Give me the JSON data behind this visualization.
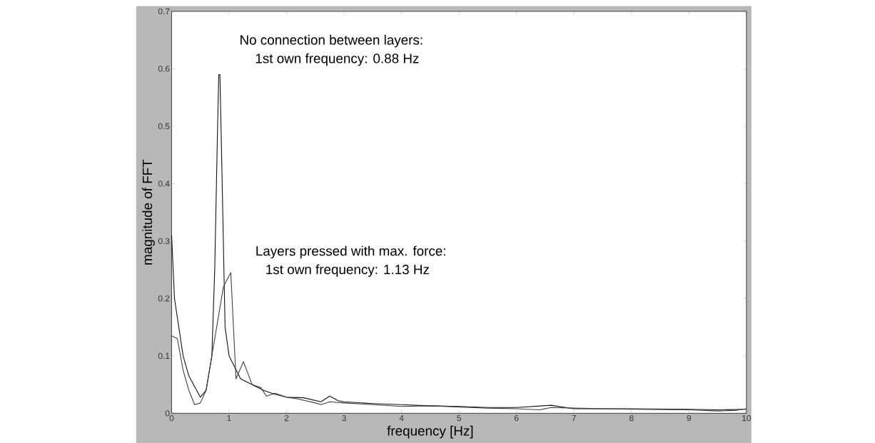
{
  "chart_data": {
    "type": "line",
    "xlabel": "frequency  [Hz]",
    "ylabel": "magnitude of FFT",
    "annotations": [
      "No connection between layers:",
      "1st own frequency: 0.88 Hz",
      "Layers pressed with max. force:",
      "1st own frequency: 1.13 Hz"
    ],
    "series": [
      {
        "color": "#111111",
        "x": [
          0,
          0.05,
          0.2,
          0.3,
          0.5,
          0.6,
          0.7,
          0.75,
          0.8,
          0.82,
          0.84,
          0.87,
          0.9,
          0.93,
          1.0,
          1.05,
          1.2,
          1.4,
          1.6,
          1.8,
          2.0,
          2.3,
          2.6,
          2.75,
          2.9,
          3.0,
          3.5,
          4.0,
          4.5,
          5.0,
          5.5,
          6.0,
          6.6,
          7.0,
          8.0,
          9.0,
          9.5,
          10
        ],
        "values": [
          0.31,
          0.2,
          0.1,
          0.065,
          0.028,
          0.04,
          0.1,
          0.25,
          0.5,
          0.59,
          0.59,
          0.45,
          0.3,
          0.15,
          0.1,
          0.09,
          0.06,
          0.05,
          0.04,
          0.033,
          0.028,
          0.027,
          0.02,
          0.03,
          0.022,
          0.02,
          0.017,
          0.015,
          0.013,
          0.012,
          0.01,
          0.01,
          0.014,
          0.008,
          0.008,
          0.007,
          0.006,
          0.007
        ]
      },
      {
        "color": "#404040",
        "x": [
          0,
          0.1,
          0.2,
          0.3,
          0.4,
          0.5,
          0.6,
          0.7,
          0.8,
          0.9,
          0.95,
          1.03,
          1.12,
          1.25,
          1.4,
          1.55,
          1.65,
          1.8,
          2.0,
          2.2,
          2.5,
          2.6,
          2.75,
          3.0,
          3.5,
          4.0,
          4.5,
          5.0,
          5.5,
          6.0,
          6.4,
          6.6,
          7.0,
          8.0,
          9.0,
          9.5,
          9.8,
          10
        ],
        "values": [
          0.135,
          0.13,
          0.075,
          0.04,
          0.015,
          0.018,
          0.04,
          0.1,
          0.16,
          0.22,
          0.23,
          0.245,
          0.06,
          0.09,
          0.05,
          0.045,
          0.03,
          0.035,
          0.028,
          0.025,
          0.018,
          0.015,
          0.02,
          0.018,
          0.015,
          0.012,
          0.013,
          0.011,
          0.009,
          0.008,
          0.006,
          0.01,
          0.009,
          0.007,
          0.006,
          0.004,
          0.005,
          0.008
        ]
      }
    ],
    "xlim": [
      0,
      10
    ],
    "ylim": [
      0,
      0.7
    ],
    "xticks": [
      0,
      1,
      2,
      3,
      4,
      5,
      6,
      7,
      8,
      9,
      10
    ],
    "yticks": [
      0,
      0.1,
      0.2,
      0.3,
      0.4,
      0.5,
      0.6,
      0.7
    ],
    "grid": false,
    "marker": "none",
    "line_style": "solid"
  }
}
